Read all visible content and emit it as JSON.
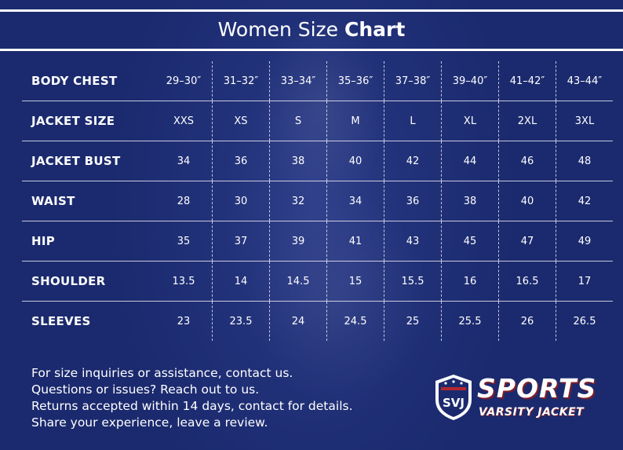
{
  "title": {
    "light": "Women Size ",
    "bold": "Chart"
  },
  "rows": [
    {
      "label": "BODY CHEST",
      "values": [
        "29–30″",
        "31–32″",
        "33–34″",
        "35–36″",
        "37–38″",
        "39–40″",
        "41–42″",
        "43–44″"
      ]
    },
    {
      "label": "JACKET SIZE",
      "values": [
        "XXS",
        "XS",
        "S",
        "M",
        "L",
        "XL",
        "2XL",
        "3XL"
      ]
    },
    {
      "label": "JACKET BUST",
      "values": [
        "34",
        "36",
        "38",
        "40",
        "42",
        "44",
        "46",
        "48"
      ]
    },
    {
      "label": "WAIST",
      "values": [
        "28",
        "30",
        "32",
        "34",
        "36",
        "38",
        "40",
        "42"
      ]
    },
    {
      "label": "HIP",
      "values": [
        "35",
        "37",
        "39",
        "41",
        "43",
        "45",
        "47",
        "49"
      ]
    },
    {
      "label": "SHOULDER",
      "values": [
        "13.5",
        "14",
        "14.5",
        "15",
        "15.5",
        "16",
        "16.5",
        "17"
      ]
    },
    {
      "label": "SLEEVES",
      "values": [
        "23",
        "23.5",
        "24",
        "24.5",
        "25",
        "25.5",
        "26",
        "26.5"
      ]
    }
  ],
  "info_lines": [
    "For size inquiries or assistance, contact us.",
    "Questions or issues? Reach out to us.",
    "Returns accepted within 14 days, contact for details.",
    "Share your experience, leave a review."
  ],
  "logo": {
    "shield_text": "SVJ",
    "brand": "SPORTS",
    "sub": "VARSITY JACKET"
  },
  "colors": {
    "background": "#1b2a6e",
    "accent": "#b3262f",
    "text": "#ffffff"
  }
}
